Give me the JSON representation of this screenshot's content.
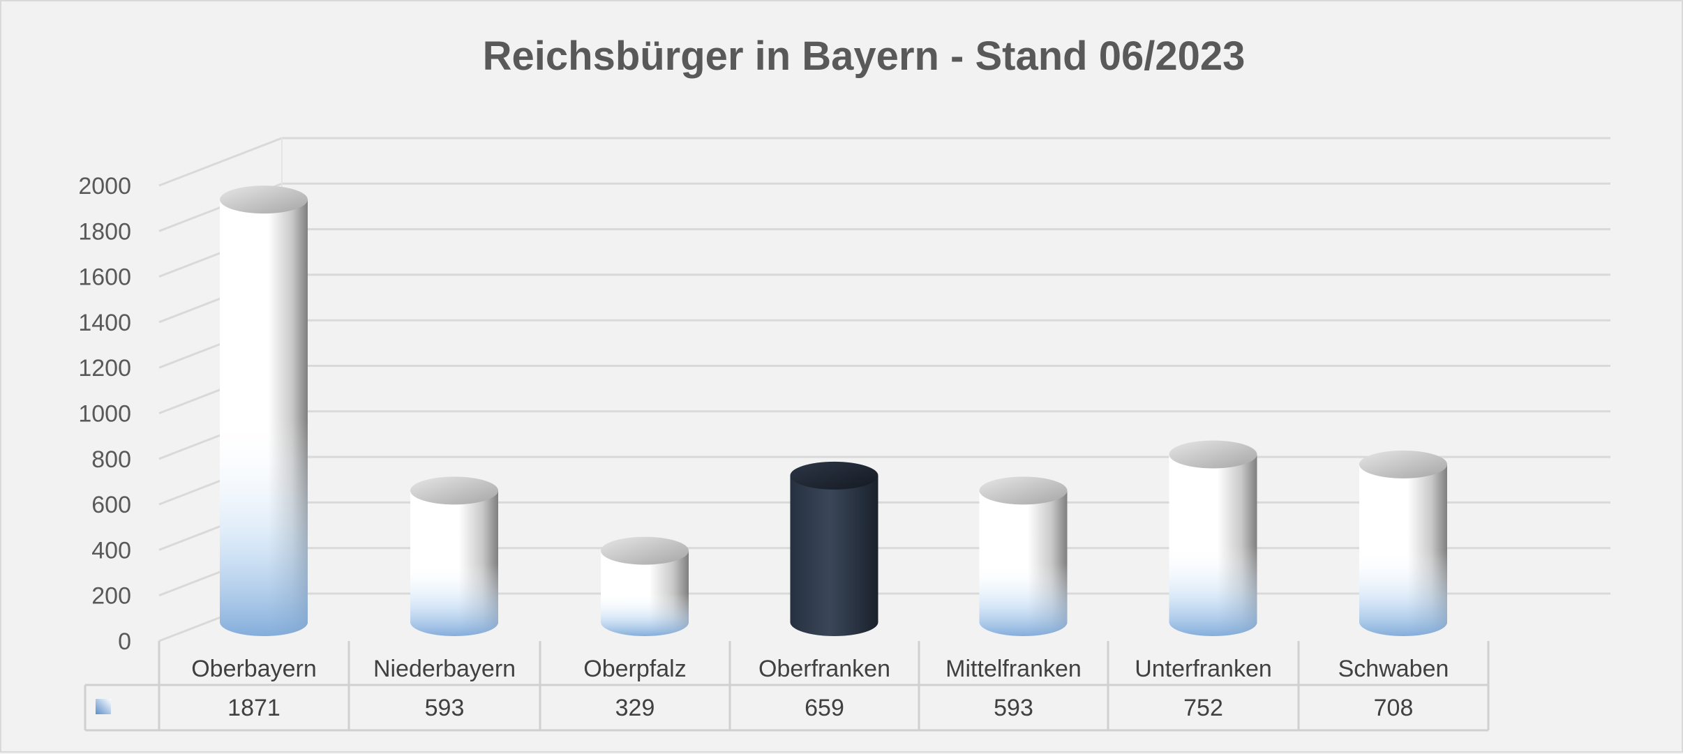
{
  "chart_data": {
    "type": "bar",
    "style": "3d-cylinder",
    "title": "Reichsbürger in Bayern  - Stand 06/2023",
    "categories": [
      "Oberbayern",
      "Niederbayern",
      "Oberpfalz",
      "Oberfranken",
      "Mittelfranken",
      "Unterfranken",
      "Schwaben"
    ],
    "series": [
      {
        "values": [
          1871,
          593,
          329,
          659,
          593,
          752,
          708
        ]
      }
    ],
    "highlight_index": 3,
    "ylim": [
      0,
      2000
    ],
    "yticks": [
      0,
      200,
      400,
      600,
      800,
      1000,
      1200,
      1400,
      1600,
      1800,
      2000
    ],
    "grid": true,
    "data_table": true,
    "legend": "none",
    "colors": {
      "background": "#f2f2f2",
      "bar_light": "#ffffff",
      "bar_shade": "#8c8c8c",
      "bar_blue": "#9dc3e6",
      "bar_dark": "#2e3a4d",
      "gridline": "#d9d9d9",
      "text": "#595959"
    }
  }
}
